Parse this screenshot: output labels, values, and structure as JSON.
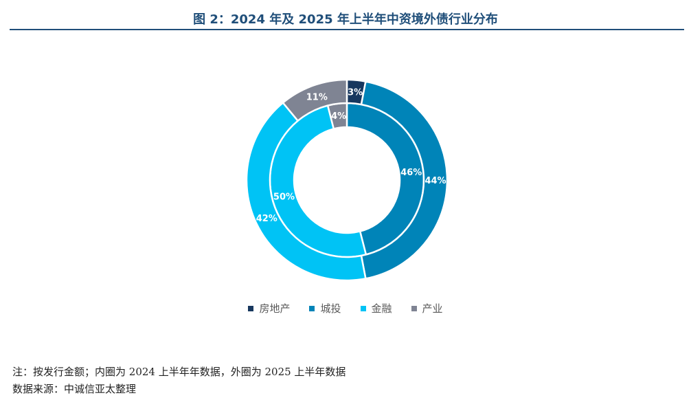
{
  "title": "图 2：2024 年及 2025 年上半年中资境外债行业分布",
  "note": "注：按发行金额；内圈为 2024 上半年年数据，外圈为 2025 上半年数据",
  "source": "数据来源：中诚信亚太整理",
  "chart_data": {
    "type": "pie",
    "variant": "nested-donut",
    "categories": [
      "房地产",
      "城投",
      "金融",
      "产业"
    ],
    "colors": [
      "#17375e",
      "#0084b8",
      "#00c3f5",
      "#7f8493"
    ],
    "series": [
      {
        "values": [
          0,
          46,
          50,
          4
        ],
        "labels": [
          "",
          "46%",
          "50%",
          "4%"
        ]
      },
      {
        "values": [
          3,
          44,
          42,
          11
        ],
        "labels": [
          "3%",
          "44%",
          "42%",
          "11%"
        ]
      }
    ],
    "legend_position": "bottom"
  }
}
